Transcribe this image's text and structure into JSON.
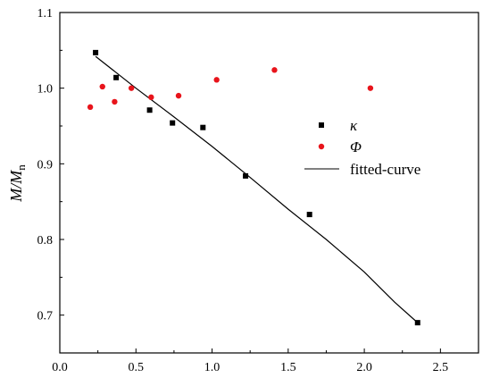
{
  "chart_data": {
    "type": "scatter",
    "title": "",
    "xlabel": "",
    "ylabel": {
      "main": "M/M",
      "subscript": "n"
    },
    "xlim": [
      0.0,
      2.75
    ],
    "ylim": [
      0.65,
      1.1
    ],
    "x_ticks": [
      "0.0",
      "0.5",
      "1.0",
      "1.5",
      "2.0",
      "2.5"
    ],
    "x_tick_values": [
      0.0,
      0.5,
      1.0,
      1.5,
      2.0,
      2.5
    ],
    "y_ticks": [
      "0.7",
      "0.8",
      "0.9",
      "1.0",
      "1.1"
    ],
    "y_tick_values": [
      0.7,
      0.8,
      0.9,
      1.0,
      1.1
    ],
    "grid": false,
    "legend_position": "right-center",
    "series": [
      {
        "name": "κ",
        "marker": "square",
        "color": "#000000",
        "x": [
          0.235,
          0.37,
          0.59,
          0.74,
          0.94,
          1.22,
          1.64,
          2.35
        ],
        "y": [
          1.047,
          1.014,
          0.971,
          0.954,
          0.948,
          0.884,
          0.833,
          0.69
        ]
      },
      {
        "name": "Φ",
        "marker": "circle",
        "color": "#e8141b",
        "x": [
          0.2,
          0.28,
          0.36,
          0.47,
          0.6,
          0.78,
          1.03,
          1.41,
          2.04
        ],
        "y": [
          0.975,
          1.002,
          0.982,
          1.0,
          0.988,
          0.99,
          1.011,
          1.024,
          1.0
        ]
      },
      {
        "name": "fitted-curve",
        "marker": "line",
        "color": "#000000",
        "x": [
          0.235,
          0.5,
          0.75,
          1.0,
          1.25,
          1.5,
          1.75,
          2.0,
          2.2,
          2.35
        ],
        "y": [
          1.042,
          1.0,
          0.962,
          0.923,
          0.882,
          0.84,
          0.8,
          0.757,
          0.717,
          0.69
        ]
      }
    ]
  }
}
